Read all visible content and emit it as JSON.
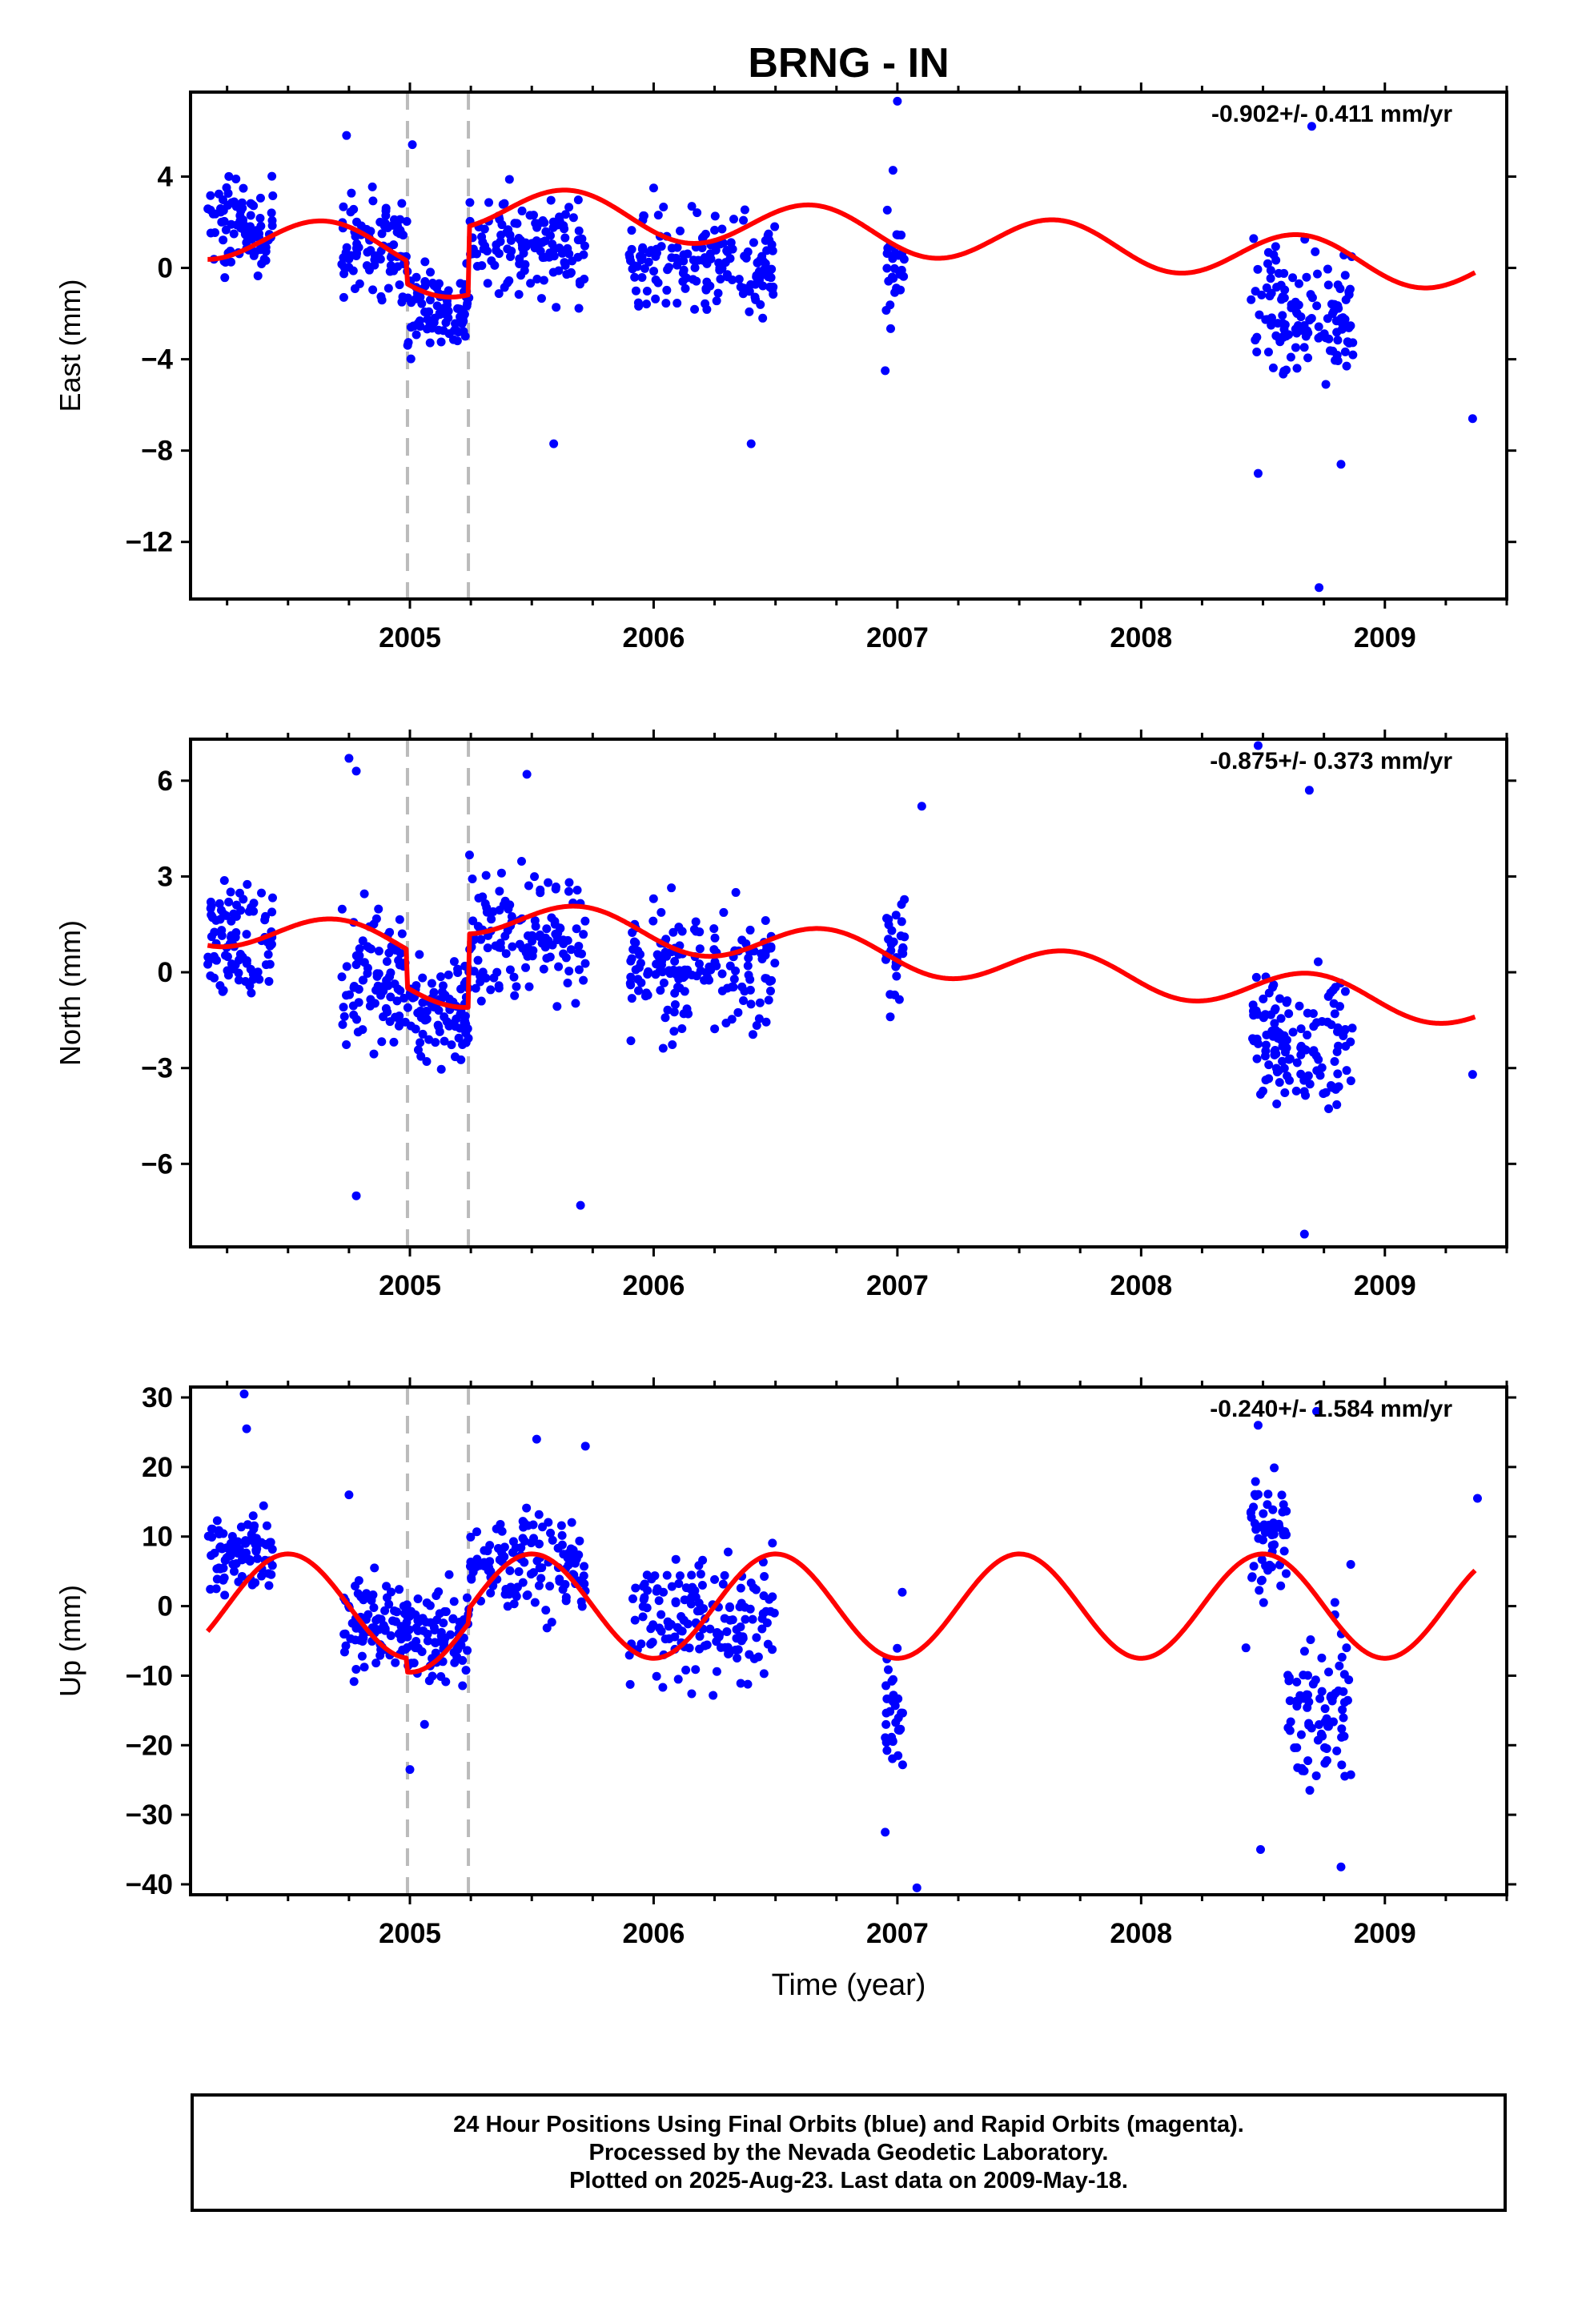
{
  "title": "BRNG - IN",
  "colors": {
    "final_orbits": "#0000ff",
    "model": "#ff0000",
    "offset_line": "#bbbbbb"
  },
  "footer": {
    "line1": "24 Hour Positions Using Final Orbits (blue) and Rapid Orbits (magenta).",
    "line2": "Processed by the Nevada Geodetic Laboratory.",
    "line3": "Plotted on 2025-Aug-23. Last data on 2009-May-18."
  },
  "chart_data": [
    {
      "type": "scatter",
      "name": "east",
      "ylabel": "East (mm)",
      "xlabel": "",
      "rate_label": "-0.902+/- 0.411 mm/yr",
      "xlim": [
        2004.1,
        2009.5
      ],
      "ylim": [
        -14.5,
        7.7
      ],
      "yticks": [
        4,
        0,
        -4,
        -8,
        -12
      ],
      "ytick_labels": [
        "4",
        "0",
        "−4",
        "−8",
        "−12"
      ],
      "xticks": [
        2005,
        2006,
        2007,
        2008,
        2009
      ],
      "xtick_labels": [
        "2005",
        "2006",
        "2007",
        "2008",
        "2009"
      ],
      "offsets": [
        2004.99,
        2005.24
      ],
      "model": {
        "amp": 1.0,
        "phase_year": 2004.4,
        "base": 0.5,
        "breaks": [
          [
            2004.99,
            -1.0
          ],
          [
            2005.24,
            3.0
          ]
        ],
        "trend": -0.65,
        "ref_year": 2005.5
      },
      "points": {
        "segments": [
          {
            "x0": 2004.17,
            "x1": 2004.44,
            "center": 1.8,
            "spread": 1.6,
            "n": 90
          },
          {
            "x0": 2004.72,
            "x1": 2004.99,
            "center": 1.0,
            "spread": 1.8,
            "n": 90
          },
          {
            "x0": 2004.99,
            "x1": 2005.24,
            "center": -1.8,
            "spread": 1.6,
            "n": 90
          },
          {
            "x0": 2005.24,
            "x1": 2005.72,
            "center": 1.0,
            "spread": 1.8,
            "n": 130
          },
          {
            "x0": 2005.9,
            "x1": 2006.5,
            "center": 0.0,
            "spread": 1.8,
            "n": 160
          },
          {
            "x0": 2006.95,
            "x1": 2007.03,
            "center": 0.5,
            "spread": 2.5,
            "n": 30
          },
          {
            "x0": 2008.45,
            "x1": 2008.87,
            "center": -2.0,
            "spread": 2.2,
            "n": 130
          }
        ],
        "outliers": [
          [
            2004.74,
            5.8
          ],
          [
            2005.01,
            5.4
          ],
          [
            2006.0,
            3.5
          ],
          [
            2006.4,
            -7.7
          ],
          [
            2005.59,
            -7.7
          ],
          [
            2007.0,
            7.3
          ],
          [
            2008.7,
            6.2
          ],
          [
            2008.73,
            -14.0
          ],
          [
            2008.48,
            -9.0
          ],
          [
            2008.82,
            -8.6
          ],
          [
            2009.36,
            -6.6
          ],
          [
            2006.95,
            -4.5
          ]
        ]
      }
    },
    {
      "type": "scatter",
      "name": "north",
      "ylabel": "North (mm)",
      "xlabel": "",
      "rate_label": "-0.875+/- 0.373 mm/yr",
      "xlim": [
        2004.1,
        2009.5
      ],
      "ylim": [
        -8.6,
        7.3
      ],
      "yticks": [
        6,
        3,
        0,
        -3,
        -6
      ],
      "ytick_labels": [
        "6",
        "3",
        "0",
        "−3",
        "−6"
      ],
      "xticks": [
        2005,
        2006,
        2007,
        2008,
        2009
      ],
      "xtick_labels": [
        "2005",
        "2006",
        "2007",
        "2008",
        "2009"
      ],
      "offsets": [
        2004.99,
        2005.24
      ],
      "model": {
        "amp": 0.6,
        "phase_year": 2004.45,
        "base": 0.5,
        "breaks": [
          [
            2004.99,
            -1.2
          ],
          [
            2005.24,
            2.3
          ]
        ],
        "trend": -0.7,
        "ref_year": 2005.5
      },
      "points": {
        "segments": [
          {
            "x0": 2004.17,
            "x1": 2004.44,
            "center": 1.0,
            "spread": 1.4,
            "n": 90
          },
          {
            "x0": 2004.72,
            "x1": 2004.99,
            "center": 0.0,
            "spread": 1.8,
            "n": 90
          },
          {
            "x0": 2004.99,
            "x1": 2005.24,
            "center": -1.2,
            "spread": 1.5,
            "n": 90
          },
          {
            "x0": 2005.24,
            "x1": 2005.72,
            "center": 1.2,
            "spread": 1.8,
            "n": 130
          },
          {
            "x0": 2005.9,
            "x1": 2006.5,
            "center": 0.0,
            "spread": 1.5,
            "n": 160
          },
          {
            "x0": 2006.95,
            "x1": 2007.03,
            "center": 0.8,
            "spread": 1.5,
            "n": 30
          },
          {
            "x0": 2008.45,
            "x1": 2008.87,
            "center": -2.0,
            "spread": 1.6,
            "n": 130
          }
        ],
        "outliers": [
          [
            2004.75,
            6.7
          ],
          [
            2004.78,
            6.3
          ],
          [
            2004.78,
            -7.0
          ],
          [
            2005.48,
            6.2
          ],
          [
            2005.7,
            -7.3
          ],
          [
            2008.69,
            5.7
          ],
          [
            2008.67,
            -8.2
          ],
          [
            2007.1,
            5.2
          ],
          [
            2009.36,
            -3.2
          ],
          [
            2008.48,
            7.1
          ]
        ]
      }
    },
    {
      "type": "scatter",
      "name": "up",
      "ylabel": "Up (mm)",
      "xlabel": "Time (year)",
      "rate_label": "-0.240+/- 1.584 mm/yr",
      "xlim": [
        2004.1,
        2009.5
      ],
      "ylim": [
        -41.5,
        31.5
      ],
      "yticks": [
        30,
        20,
        10,
        0,
        -10,
        -20,
        -30,
        -40
      ],
      "ytick_labels": [
        "30",
        "20",
        "10",
        "0",
        "−10",
        "−20",
        "−30",
        "−40"
      ],
      "xticks": [
        2005,
        2006,
        2007,
        2008,
        2009
      ],
      "xtick_labels": [
        "2005",
        "2006",
        "2007",
        "2008",
        "2009"
      ],
      "offsets": [
        2004.99,
        2005.24
      ],
      "model": {
        "amp": 7.5,
        "phase_year": 2004.25,
        "base": 0.0,
        "breaks": [
          [
            2004.99,
            -2.0
          ],
          [
            2005.24,
            2.0
          ]
        ],
        "trend": 0.0,
        "ref_year": 2005.5
      },
      "points": {
        "segments": [
          {
            "x0": 2004.17,
            "x1": 2004.44,
            "center": 7.0,
            "spread": 5.0,
            "n": 90
          },
          {
            "x0": 2004.72,
            "x1": 2004.99,
            "center": -3.0,
            "spread": 5.0,
            "n": 90
          },
          {
            "x0": 2004.99,
            "x1": 2005.24,
            "center": -4.0,
            "spread": 5.0,
            "n": 90
          },
          {
            "x0": 2005.24,
            "x1": 2005.72,
            "center": 6.0,
            "spread": 6.0,
            "n": 130
          },
          {
            "x0": 2005.9,
            "x1": 2006.5,
            "center": -2.0,
            "spread": 8.0,
            "n": 160
          },
          {
            "x0": 2006.95,
            "x1": 2007.03,
            "center": -15.0,
            "spread": 8.0,
            "n": 30
          },
          {
            "x0": 2008.45,
            "x1": 2008.6,
            "center": 10.0,
            "spread": 6.0,
            "n": 55
          },
          {
            "x0": 2008.6,
            "x1": 2008.87,
            "center": -15.0,
            "spread": 9.0,
            "n": 80
          }
        ],
        "outliers": [
          [
            2004.32,
            30.5
          ],
          [
            2004.33,
            25.5
          ],
          [
            2004.75,
            16.0
          ],
          [
            2005.0,
            -23.5
          ],
          [
            2005.06,
            -17.0
          ],
          [
            2005.52,
            24.0
          ],
          [
            2005.72,
            23.0
          ],
          [
            2008.48,
            26.0
          ],
          [
            2008.49,
            -35.0
          ],
          [
            2008.72,
            28.0
          ],
          [
            2008.82,
            -37.5
          ],
          [
            2008.86,
            6.0
          ],
          [
            2007.08,
            -40.5
          ],
          [
            2006.95,
            -32.5
          ],
          [
            2009.38,
            15.5
          ],
          [
            2008.43,
            -6.0
          ],
          [
            2007.02,
            2.0
          ]
        ]
      }
    }
  ]
}
